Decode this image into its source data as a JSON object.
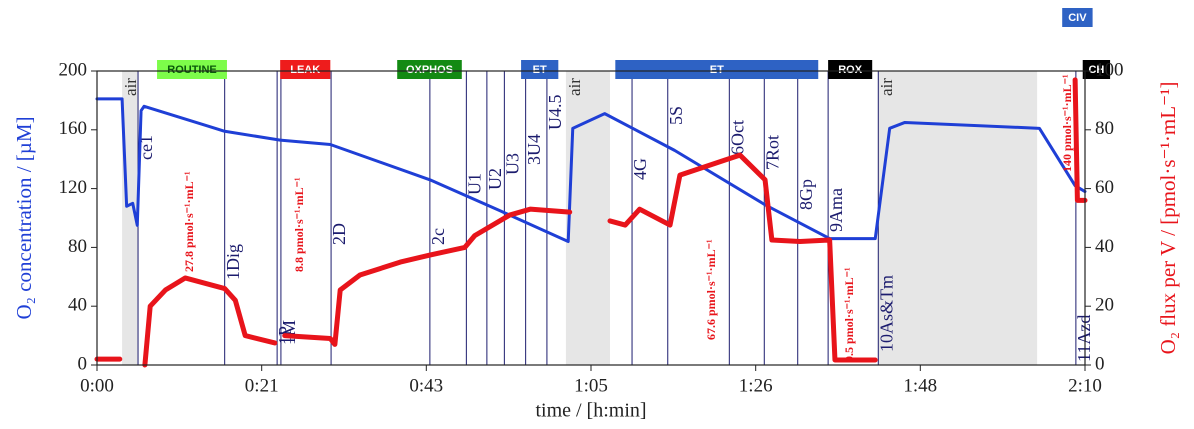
{
  "chart_data": {
    "type": "line",
    "xlabel": "time / [h:min]",
    "ylabel": "O₂ concentration / [µM]",
    "y2label": "O₂ flux per V / [pmol·s⁻¹·mL⁻¹]",
    "xlim": [
      0,
      130
    ],
    "xticks": [
      {
        "value": 0,
        "label": "0:00"
      },
      {
        "value": 21.67,
        "label": "0:21"
      },
      {
        "value": 43.33,
        "label": "0:43"
      },
      {
        "value": 65,
        "label": "1:05"
      },
      {
        "value": 86.67,
        "label": "1:26"
      },
      {
        "value": 108.33,
        "label": "1:48"
      },
      {
        "value": 130,
        "label": "2:10"
      }
    ],
    "ylim": [
      0,
      200
    ],
    "yticks": [
      0,
      40,
      80,
      120,
      160,
      200
    ],
    "y2lim": [
      0,
      100
    ],
    "y2ticks": [
      0,
      20,
      40,
      60,
      80,
      100
    ],
    "series": [
      {
        "color": "#1f3fd6",
        "axis": "y",
        "x": [
          0,
          3.3,
          3.9,
          4.7,
          5.3,
          5.8,
          6.2,
          16.8,
          24.1,
          30.7,
          43.8,
          53,
          62,
          62.6,
          66.8,
          76,
          87.9,
          96.4,
          102.4,
          104.3,
          106.3,
          124,
          128.7,
          130
        ],
        "values": [
          181,
          181,
          108,
          110,
          95,
          173,
          176,
          159,
          153,
          150,
          126,
          105,
          84,
          161,
          171,
          146,
          109,
          86,
          86,
          161,
          165,
          161,
          122,
          118
        ]
      },
      {
        "color": "#e8141b",
        "axis": "y2",
        "x": [
          0,
          3,
          4,
          6.3,
          7,
          9,
          11.6,
          16.8,
          18.2,
          19.5,
          23.4,
          24,
          24.7,
          30.7,
          31.3,
          32,
          34.6,
          39.9,
          43.8,
          48.4,
          49.7,
          54.3,
          57,
          62.2,
          64,
          67.5,
          69.5,
          71.4,
          75.4,
          76.7,
          82.6,
          84.6,
          87.9,
          88.8,
          92.5,
          96.4,
          97.1,
          102.4,
          110,
          128.7,
          129,
          130
        ],
        "values": [
          2,
          2,
          null,
          0,
          20,
          25.5,
          29.6,
          26,
          22,
          10,
          7.5,
          null,
          10,
          9,
          7,
          25.5,
          30.6,
          35,
          37.4,
          40,
          44,
          51,
          53,
          52,
          null,
          49,
          47.6,
          53,
          47.6,
          64.6,
          69.7,
          71.4,
          63,
          42.5,
          42,
          42.5,
          1.7,
          1.7,
          null,
          97,
          56,
          56
        ]
      }
    ],
    "regions": [
      {
        "start": 3.3,
        "end": 5.4,
        "label": "air"
      },
      {
        "start": 61.7,
        "end": 67.5,
        "label": "air"
      },
      {
        "start": 102.8,
        "end": 123.7,
        "label": "air"
      }
    ],
    "events": [
      {
        "time": 5.4,
        "label": "ce1"
      },
      {
        "time": 16.8,
        "label": "1Dig"
      },
      {
        "time": 23.7,
        "label": "1P"
      },
      {
        "time": 24.2,
        "label": "1M"
      },
      {
        "time": 30.8,
        "label": "2D"
      },
      {
        "time": 43.8,
        "label": "2c"
      },
      {
        "time": 48.6,
        "label": "U1"
      },
      {
        "time": 51.3,
        "label": "U2"
      },
      {
        "time": 53.6,
        "label": "U3"
      },
      {
        "time": 56.4,
        "label": "3U4"
      },
      {
        "time": 59.2,
        "label": "U4.5"
      },
      {
        "time": 70.4,
        "label": "4G"
      },
      {
        "time": 75.1,
        "label": "5S"
      },
      {
        "time": 83.2,
        "label": "6Oct"
      },
      {
        "time": 87.8,
        "label": "7Rot"
      },
      {
        "time": 92.2,
        "label": "8Gp"
      },
      {
        "time": 96.2,
        "label": "9Ama"
      },
      {
        "time": 102.8,
        "label": "10As&Tm"
      },
      {
        "time": 128.8,
        "label": "11Azd"
      }
    ],
    "states": [
      {
        "label": "ROUTINE",
        "color": "#7dfc4a",
        "text_color": "#0a5a0a",
        "start": 7.9,
        "end": 17.1
      },
      {
        "label": "LEAK",
        "color": "#ee1c1c",
        "text_color": "#ffffff",
        "start": 24.1,
        "end": 30.7
      },
      {
        "label": "OXPHOS",
        "color": "#138a13",
        "text_color": "#ffffff",
        "start": 39.5,
        "end": 48
      },
      {
        "label": "ET",
        "color": "#2e62c4",
        "text_color": "#ffffff",
        "start": 55.8,
        "end": 60.7
      },
      {
        "label": "ET",
        "color": "#2e62c4",
        "text_color": "#ffffff",
        "start": 68.2,
        "end": 94.9
      },
      {
        "label": "ROX",
        "color": "#000000",
        "text_color": "#ffffff",
        "start": 96.2,
        "end": 102
      },
      {
        "label": "CIV",
        "color": "#2e62c4",
        "text_color": "#ffffff",
        "start": 127,
        "end": 131
      },
      {
        "label": "CH",
        "color": "#000000",
        "text_color": "#ffffff",
        "start": 129.7,
        "end": 133.3
      }
    ],
    "annotations": [
      "27.8 pmol·s⁻¹·mL⁻¹",
      "8.8 pmol·s⁻¹·mL⁻¹",
      "67.6 pmol·s⁻¹·mL⁻¹",
      "0.5 pmol·s⁻¹·mL⁻¹",
      "140 pmol·s⁻¹·mL⁻¹"
    ]
  }
}
